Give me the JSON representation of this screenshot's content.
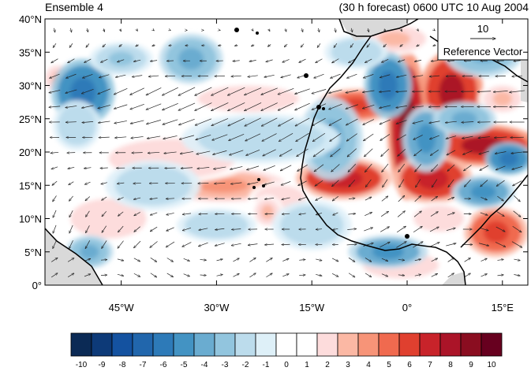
{
  "header": {
    "left_label": "Ensemble 4",
    "right_label": "(30 h forecast) 0600 UTC 10 Aug 2004"
  },
  "reference_vector": {
    "magnitude_label": "10",
    "caption": "Reference Vector"
  },
  "axes": {
    "lat_labels": [
      "40°N",
      "35°N",
      "30°N",
      "25°N",
      "20°N",
      "15°N",
      "10°N",
      "5°N",
      "0°"
    ],
    "lat_values": [
      40,
      35,
      30,
      25,
      20,
      15,
      10,
      5,
      0
    ],
    "lon_labels": [
      "45°W",
      "30°W",
      "15°W",
      "0°",
      "15°E"
    ],
    "lon_values": [
      -45,
      -30,
      -15,
      0,
      15
    ],
    "lon_range": [
      -57,
      19
    ],
    "lat_range": [
      0,
      40
    ]
  },
  "colorbar": {
    "labels": [
      "-10",
      "-9",
      "-8",
      "-7",
      "-6",
      "-5",
      "-4",
      "-3",
      "-2",
      "-1",
      "0",
      "1",
      "2",
      "3",
      "4",
      "5",
      "6",
      "7",
      "8",
      "9",
      "10"
    ],
    "colors": [
      "#0b2a55",
      "#0d3a78",
      "#1452a0",
      "#2166ac",
      "#2d7ab8",
      "#4393c3",
      "#6aacd0",
      "#92c5de",
      "#bcdcec",
      "#def0f8",
      "#ffffff",
      "#ffffff",
      "#fddcdc",
      "#fbb8a4",
      "#f79478",
      "#f06a4f",
      "#e0402f",
      "#c8232a",
      "#ab1428",
      "#8a0d20",
      "#67001f"
    ]
  },
  "colors": {
    "land_gray": "#d9d9d9",
    "vector": "#222222",
    "coast": "#000000"
  },
  "field_anomalies": [
    {
      "lon": 7,
      "lat": 29,
      "sx": 4,
      "sy": 5,
      "v": 8
    },
    {
      "lon": 0,
      "lat": 24,
      "sx": 2.5,
      "sy": 9,
      "v": 9
    },
    {
      "lon": 12,
      "lat": 21,
      "sx": 7,
      "sy": 2.5,
      "v": 8
    },
    {
      "lon": 4,
      "lat": 16,
      "sx": 5,
      "sy": 3,
      "v": 7
    },
    {
      "lon": -10,
      "lat": 16,
      "sx": 6,
      "sy": 2.5,
      "v": 7
    },
    {
      "lon": -8,
      "lat": 27,
      "sx": 5,
      "sy": 2,
      "v": 6
    },
    {
      "lon": -29,
      "lat": 15,
      "sx": 8,
      "sy": 2,
      "v": 4
    },
    {
      "lon": -37,
      "lat": 19,
      "sx": 10,
      "sy": 3,
      "v": 2
    },
    {
      "lon": -47,
      "lat": 10,
      "sx": 6,
      "sy": 3,
      "v": 2
    },
    {
      "lon": -20,
      "lat": 13,
      "sx": 4,
      "sy": 2,
      "v": 2
    },
    {
      "lon": 15,
      "lat": 28,
      "sx": 3,
      "sy": 2,
      "v": 3
    },
    {
      "lon": -22,
      "lat": 11,
      "sx": 2,
      "sy": 2,
      "v": 3
    },
    {
      "lon": -1,
      "lat": 3,
      "sx": 6,
      "sy": 2,
      "v": 2
    },
    {
      "lon": 14,
      "lat": 8,
      "sx": 4,
      "sy": 3,
      "v": 6
    },
    {
      "lon": 5,
      "lat": 10,
      "sx": 4,
      "sy": 2,
      "v": 2
    },
    {
      "lon": -55,
      "lat": 31,
      "sx": 2,
      "sy": 2,
      "v": 3
    },
    {
      "lon": -25,
      "lat": 28,
      "sx": 8,
      "sy": 2,
      "v": 2
    },
    {
      "lon": -2,
      "lat": 37,
      "sx": 5,
      "sy": 2,
      "v": 3
    },
    {
      "lon": -51,
      "lat": 29,
      "sx": 4,
      "sy": 4,
      "v": -6
    },
    {
      "lon": -34,
      "lat": 34,
      "sx": 4,
      "sy": 3,
      "v": -4
    },
    {
      "lon": -3,
      "lat": 30,
      "sx": 3,
      "sy": 4,
      "v": -6
    },
    {
      "lon": 3,
      "lat": 22,
      "sx": 3,
      "sy": 4,
      "v": -5
    },
    {
      "lon": -12,
      "lat": 22,
      "sx": 4,
      "sy": 5,
      "v": -4
    },
    {
      "lon": 9,
      "lat": 25,
      "sx": 4,
      "sy": 2,
      "v": -4
    },
    {
      "lon": 16,
      "lat": 19,
      "sx": 3,
      "sy": 2,
      "v": -6
    },
    {
      "lon": 12,
      "lat": 14,
      "sx": 4,
      "sy": 2,
      "v": -5
    },
    {
      "lon": -3,
      "lat": 5,
      "sx": 5,
      "sy": 2,
      "v": -5
    },
    {
      "lon": -50,
      "lat": 5,
      "sx": 3,
      "sy": 2,
      "v": -4
    },
    {
      "lon": -40,
      "lat": 15,
      "sx": 6,
      "sy": 3,
      "v": -2
    },
    {
      "lon": -45,
      "lat": 34,
      "sx": 4,
      "sy": 2,
      "v": -3
    },
    {
      "lon": -23,
      "lat": 22,
      "sx": 10,
      "sy": 3,
      "v": -2
    },
    {
      "lon": -15,
      "lat": 9,
      "sx": 5,
      "sy": 3,
      "v": -2
    },
    {
      "lon": -52,
      "lat": 24,
      "sx": 3,
      "sy": 3,
      "v": -2
    },
    {
      "lon": 12,
      "lat": 35,
      "sx": 5,
      "sy": 3,
      "v": -4
    },
    {
      "lon": -8,
      "lat": 35,
      "sx": 4,
      "sy": 2,
      "v": -2
    },
    {
      "lon": -30,
      "lat": 9,
      "sx": 5,
      "sy": 2,
      "v": -2
    }
  ]
}
